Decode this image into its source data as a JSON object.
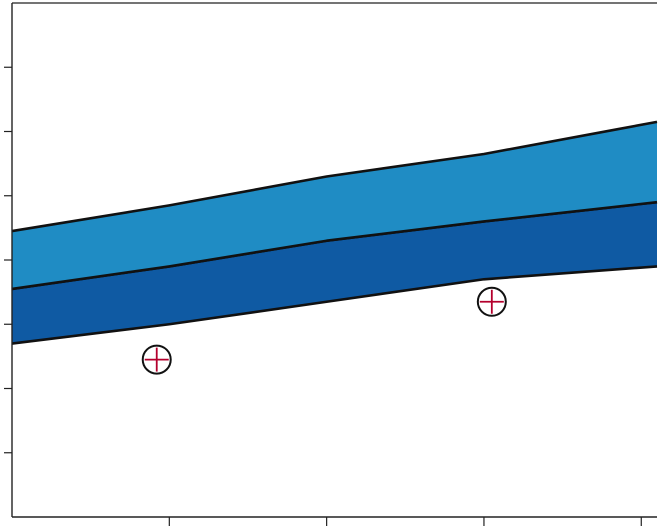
{
  "chart_data": {
    "type": "area",
    "title": "",
    "xlabel": "",
    "ylabel": "",
    "xlim": [
      0,
      4.1
    ],
    "ylim": [
      0,
      8
    ],
    "grid": false,
    "x": [
      0,
      1,
      2,
      3,
      4.1
    ],
    "series": [
      {
        "values_lower": [
          2.7,
          3.0,
          3.35,
          3.7,
          3.9
        ],
        "values_upper": [
          3.55,
          3.9,
          4.3,
          4.6,
          4.9
        ],
        "color": "#0f5aa3"
      },
      {
        "values_lower": [
          3.55,
          3.9,
          4.3,
          4.6,
          4.9
        ],
        "values_upper": [
          4.45,
          4.85,
          5.3,
          5.65,
          6.15
        ],
        "color": "#1f8cc4"
      }
    ],
    "markers": [
      {
        "x": 0.92,
        "y": 2.45,
        "symbol": "circle-cross"
      },
      {
        "x": 3.05,
        "y": 3.35,
        "symbol": "circle-cross"
      }
    ],
    "colors": {
      "axis": "#222222",
      "band_outline": "#111111",
      "marker_ring": "#111111",
      "marker_cross": "#b4002d",
      "marker_fill": "#ffffff"
    }
  }
}
